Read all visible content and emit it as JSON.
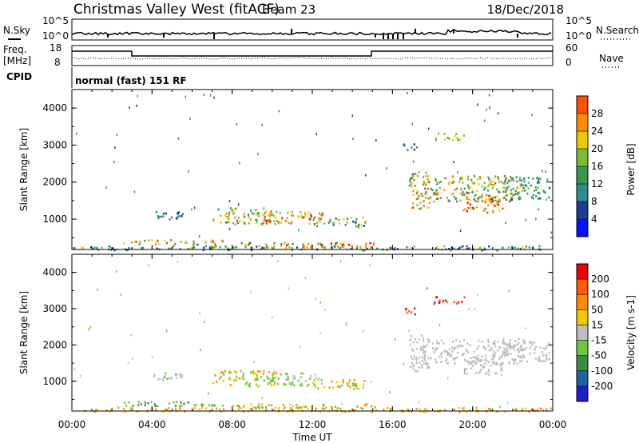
{
  "header": {
    "station": "Christmas Valley West (fitACF)",
    "beam": "Beam 23",
    "date": "18/Dec/2018",
    "program": "normal (fast) 151 RF"
  },
  "status_panels": {
    "nsky_label": "N.Sky",
    "nsky_ticks": [
      "10^5",
      "10^0"
    ],
    "nsearch_label": "N.Search",
    "nsearch_ticks": [
      "10^5",
      "10^0"
    ],
    "freq_label": "Freq.",
    "freq_unit": "[MHz]",
    "freq_ticks": [
      "18",
      "8"
    ],
    "nave_label": "Nave",
    "nave_ticks": [
      "60",
      "0"
    ],
    "cpid_label": "CPID"
  },
  "colors": {
    "power": [
      "#0014ff",
      "#1e3c96",
      "#2d8c8c",
      "#3c9650",
      "#78be32",
      "#f0c800",
      "#ff8c00",
      "#ff5000",
      "#f00000"
    ],
    "velocity": [
      "#1e1ec8",
      "#1e64a0",
      "#3c8c46",
      "#6ec83c",
      "#bebebe",
      "#f0c800",
      "#ff8c00",
      "#ff5a00",
      "#f00000"
    ],
    "ground_scatter": "#bebebe"
  },
  "chart_data": [
    {
      "type": "heatmap",
      "name": "power",
      "ylabel": "Slant Range [km]",
      "ylim": [
        180,
        4500
      ],
      "yticks": [
        "1000",
        "2000",
        "3000",
        "4000"
      ],
      "x_range_hours": [
        0,
        24
      ],
      "colorbar": {
        "label": "Power [dB]",
        "range": [
          0,
          30
        ],
        "ticks": [
          "4",
          "8",
          "12",
          "16",
          "20",
          "24",
          "28"
        ]
      },
      "blobs": [
        {
          "t": [
            3.9,
            5.5
          ],
          "r": [
            1000,
            1250
          ],
          "v": [
            4,
            11
          ]
        },
        {
          "t": [
            7.0,
            10.2
          ],
          "r": [
            880,
            1320
          ],
          "v": [
            8,
            22
          ]
        },
        {
          "t": [
            9.5,
            12.5
          ],
          "r": [
            900,
            1250
          ],
          "v": [
            14,
            28
          ]
        },
        {
          "t": [
            12.0,
            14.7
          ],
          "r": [
            800,
            1080
          ],
          "v": [
            6,
            20
          ]
        },
        {
          "t": [
            2.5,
            7.5
          ],
          "r": [
            330,
            460
          ],
          "v": [
            8,
            26
          ]
        },
        {
          "t": [
            8.0,
            15.5
          ],
          "r": [
            260,
            400
          ],
          "v": [
            10,
            30
          ]
        },
        {
          "t": [
            0.0,
            24.0
          ],
          "r": [
            180,
            300
          ],
          "v": [
            4,
            18
          ]
        },
        {
          "t": [
            16.8,
            17.8
          ],
          "r": [
            1300,
            2300
          ],
          "v": [
            10,
            26
          ]
        },
        {
          "t": [
            17.5,
            22.5
          ],
          "r": [
            1500,
            2200
          ],
          "v": [
            8,
            24
          ]
        },
        {
          "t": [
            19.5,
            21.5
          ],
          "r": [
            1200,
            1700
          ],
          "v": [
            14,
            30
          ]
        },
        {
          "t": [
            21.5,
            23.8
          ],
          "r": [
            1550,
            2150
          ],
          "v": [
            6,
            16
          ]
        },
        {
          "t": [
            18.0,
            19.6
          ],
          "r": [
            3150,
            3350
          ],
          "v": [
            12,
            18
          ]
        },
        {
          "t": [
            16.5,
            17.2
          ],
          "r": [
            2850,
            3050
          ],
          "v": [
            4,
            12
          ]
        }
      ]
    },
    {
      "type": "heatmap",
      "name": "velocity",
      "ylabel": "Slant Range [km]",
      "ylim": [
        180,
        4500
      ],
      "yticks": [
        "1000",
        "2000",
        "3000",
        "4000"
      ],
      "x_range_hours": [
        0,
        24
      ],
      "xticks": [
        "00:00",
        "04:00",
        "08:00",
        "12:00",
        "16:00",
        "20:00",
        "00:00"
      ],
      "xlabel": "Time UT",
      "colorbar": {
        "label": "Velocity [m s-1]",
        "ticks": [
          "200",
          "100",
          "50",
          "15",
          "-15",
          "-50",
          "-100",
          "-200"
        ]
      },
      "blobs": [
        {
          "t": [
            3.9,
            5.5
          ],
          "r": [
            1000,
            1250
          ],
          "c": "gray_green"
        },
        {
          "t": [
            7.0,
            10.2
          ],
          "r": [
            880,
            1320
          ],
          "c": "green_orange"
        },
        {
          "t": [
            9.5,
            12.5
          ],
          "r": [
            900,
            1250
          ],
          "c": "green_gray"
        },
        {
          "t": [
            12.0,
            14.7
          ],
          "r": [
            800,
            1080
          ],
          "c": "orange_green"
        },
        {
          "t": [
            2.5,
            7.5
          ],
          "r": [
            330,
            460
          ],
          "c": "green"
        },
        {
          "t": [
            8.0,
            15.5
          ],
          "r": [
            260,
            400
          ],
          "c": "green_orange"
        },
        {
          "t": [
            0.0,
            24.0
          ],
          "r": [
            180,
            300
          ],
          "c": "orange"
        },
        {
          "t": [
            16.8,
            17.8
          ],
          "r": [
            1300,
            2300
          ],
          "c": "gray"
        },
        {
          "t": [
            17.5,
            22.5
          ],
          "r": [
            1500,
            2200
          ],
          "c": "gray"
        },
        {
          "t": [
            19.5,
            21.5
          ],
          "r": [
            1200,
            1700
          ],
          "c": "gray"
        },
        {
          "t": [
            21.5,
            23.8
          ],
          "r": [
            1550,
            2150
          ],
          "c": "gray"
        },
        {
          "t": [
            18.0,
            19.6
          ],
          "r": [
            3150,
            3350
          ],
          "c": "red"
        },
        {
          "t": [
            16.5,
            17.2
          ],
          "r": [
            2850,
            3050
          ],
          "c": "red"
        }
      ]
    }
  ]
}
